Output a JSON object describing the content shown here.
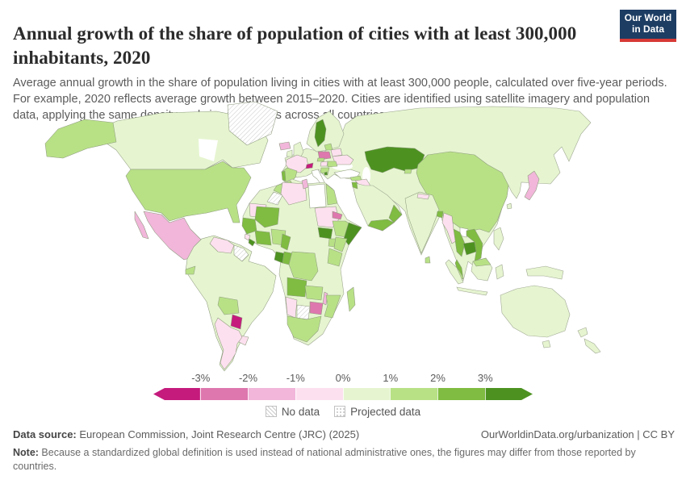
{
  "header": {
    "title": "Annual growth of the share of population of cities with at least 300,000 inhabitants, 2020",
    "subtitle": "Average annual growth in the share of population living in cities with at least 300,000 people, calculated over five-year periods. For example, 2020 reflects average growth between 2015–2020. Cities are identified using satellite imagery and population data, applying the same density and size thresholds across all countries.",
    "logo": {
      "line1": "Our World",
      "line2": "in Data",
      "bg": "#1d3d63",
      "accent": "#d73a36"
    }
  },
  "chart_data": {
    "type": "choropleth-map",
    "title": "Annual growth of the share of population of cities with at least 300,000 inhabitants",
    "year": "2020",
    "unit": "%",
    "projection": "world",
    "legend": {
      "tick_labels": [
        "-3%",
        "-2%",
        "-1%",
        "0%",
        "1%",
        "2%",
        "3%"
      ],
      "bin_colors": [
        "#c51b7d",
        "#de77ae",
        "#f1b6da",
        "#fde0ef",
        "#e6f5d0",
        "#b8e186",
        "#7fbc41",
        "#4d9221"
      ],
      "bins": [
        "< -3%",
        "-3% to -2%",
        "-2% to -1%",
        "-1% to 0%",
        "0% to 1%",
        "1% to 2%",
        "2% to 3%",
        "> 3%"
      ],
      "no_data_label": "No data",
      "projected_label": "Projected data",
      "no_data_style": "diagonal-hatch",
      "projected_style": "dots"
    },
    "regions": {
      "canada": "#e6f5d0",
      "alaska": "#b8e186",
      "usa": "#b8e186",
      "greenland": "no-data",
      "mexico": "#f1b6da",
      "baja": "#f1b6da",
      "central-america": "#b8e186",
      "cuba": "#e6f5d0",
      "dominican-republic": "#c51b7d",
      "puerto-rico": "#f1b6da",
      "venezuela": "#fde0ef",
      "guyanas": "no-data",
      "ecuador": "#b8e186",
      "bolivia": "#b8e186",
      "paraguay": "#c51b7d",
      "uruguay": "#fde0ef",
      "argentina": "#fde0ef",
      "brazil": "#e6f5d0",
      "iceland": "#f1b6da",
      "sweden": "#4d9221",
      "poland": "#de77ae",
      "france": "#fde0ef",
      "switzerland": "#c51b7d",
      "spain": "#b8e186",
      "portugal": "#7fbc41",
      "italy": "#ffffff",
      "sicily": "#ffffff",
      "czechia": "#b8e186",
      "hungary": "#fde0ef",
      "romania": "#b8e186",
      "balkans": "#b8e186",
      "albania": "#4d9221",
      "baltics": "#b8e186",
      "belarus": "#fde0ef",
      "ukraine": "#fde0ef",
      "turkey": "#ffffff",
      "syria": "#b8e186",
      "iraq": "#fde0ef",
      "jordan-israel": "#7fbc41",
      "yemen": "#7fbc41",
      "oman": "#7fbc41",
      "kazakhstan": "#4d9221",
      "kyrgyzstan": "#b8e186",
      "china-mongolia": "#b8e186",
      "taiwan": "#e6f5d0",
      "japan": "#f1b6da",
      "india": "#e6f5d0",
      "nepal": "#fde0ef",
      "bangladesh": "#7fbc41",
      "sri-lanka": "#b8e186",
      "myanmar": "#fde0ef",
      "thailand": "#7fbc41",
      "thai-peninsula": "#7fbc41",
      "cambodia": "#4d9221",
      "vietnam": "#7fbc41",
      "laos": "#ffffff",
      "malaysia-peninsula": "#b8e186",
      "malaysia-borneo": "#b8e186",
      "morocco": "#b8e186",
      "western-sahara": "no-data",
      "algeria": "#fde0ef",
      "tunisia": "#f1b6da",
      "libya": "#ffffff",
      "egypt": "#b8e186",
      "mauritania": "#fde0ef",
      "mali": "#7fbc41",
      "sudan": "#fde0ef",
      "eritrea": "#de77ae",
      "ethiopia": "#b8e186",
      "somalia": "#4d9221",
      "south-sudan": "#4d9221",
      "kenya": "#b8e186",
      "uganda": "#b8e186",
      "tanzania": "#b8e186",
      "senegal-guinea": "#7fbc41",
      "sierra-leone": "#fde0ef",
      "liberia": "#4d9221",
      "ivory-coast-ghana": "#7fbc41",
      "nigeria": "#b8e186",
      "cameroon": "#7fbc41",
      "gabon": "#4d9221",
      "congo": "#7fbc41",
      "drc": "#b8e186",
      "angola": "#7fbc41",
      "zambia": "#b8e186",
      "malawi": "#f1b6da",
      "mozambique": "#b8e186",
      "zimbabwe": "#de77ae",
      "botswana": "no-data",
      "namibia": "#fde0ef",
      "south-africa": "#b8e186",
      "madagascar": "#b8e186"
    }
  },
  "footer": {
    "source_label": "Data source:",
    "source_text": " European Commission, Joint Research Centre (JRC) (2025)",
    "link": "OurWorldinData.org/urbanization | CC BY",
    "note_label": "Note:",
    "note_text": " Because a standardized global definition is used instead of national administrative ones, the figures may differ from those reported by countries."
  }
}
